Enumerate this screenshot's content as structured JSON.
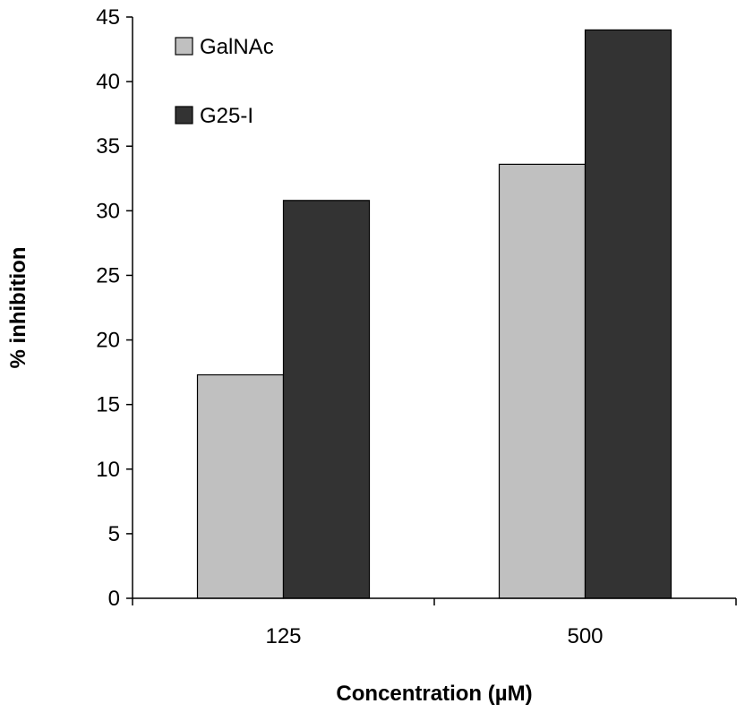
{
  "chart_data": {
    "type": "bar",
    "title": "",
    "xlabel": "Concentration (µM)",
    "ylabel": "% inhibition",
    "categories": [
      "125",
      "500"
    ],
    "series": [
      {
        "name": "GalNAc",
        "values": [
          17.3,
          33.6
        ],
        "color": "#c0c0c0"
      },
      {
        "name": "G25-I",
        "values": [
          30.8,
          44.0
        ],
        "color": "#333333"
      }
    ],
    "ylim": [
      0,
      45
    ],
    "yticks": [
      "0",
      "5",
      "10",
      "15",
      "20",
      "25",
      "30",
      "35",
      "40",
      "45"
    ],
    "grid": false,
    "legend_position": "top-left"
  }
}
